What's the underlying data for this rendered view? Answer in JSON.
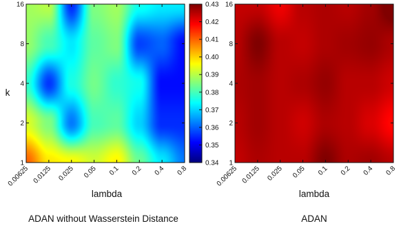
{
  "chart_data": [
    {
      "type": "heatmap",
      "title": "ADAN without Wasserstein Distance",
      "xlabel": "lambda",
      "ylabel": "k",
      "x": [
        0.00625,
        0.0125,
        0.025,
        0.05,
        0.1,
        0.2,
        0.4,
        0.8
      ],
      "xtick_labels": [
        "0.00625",
        "0.0125",
        "0.025",
        "0.05",
        "0.1",
        "0.2",
        "0.4",
        "0.8"
      ],
      "y": [
        1,
        2,
        4,
        8,
        16
      ],
      "ytick_labels": [
        "1",
        "2",
        "4",
        "8",
        "16"
      ],
      "z": [
        [
          0.41,
          0.398,
          0.396,
          0.392,
          0.397,
          0.383,
          0.372,
          0.362
        ],
        [
          0.393,
          0.385,
          0.362,
          0.38,
          0.382,
          0.37,
          0.355,
          0.355
        ],
        [
          0.378,
          0.356,
          0.376,
          0.384,
          0.378,
          0.375,
          0.352,
          0.352
        ],
        [
          0.387,
          0.38,
          0.372,
          0.382,
          0.385,
          0.357,
          0.36,
          0.352
        ],
        [
          0.388,
          0.39,
          0.355,
          0.385,
          0.388,
          0.375,
          0.372,
          0.372
        ]
      ],
      "zlim": [
        0.34,
        0.43
      ],
      "colormap": "jet",
      "colorbar": true,
      "colorbar_ticks": [
        "0.34",
        "0.35",
        "0.36",
        "0.37",
        "0.38",
        "0.39",
        "0.40",
        "0.41",
        "0.42",
        "0.43"
      ],
      "grid": false,
      "scale": "log"
    },
    {
      "type": "heatmap",
      "title": "ADAN",
      "xlabel": "lambda",
      "ylabel": "",
      "x": [
        0.00625,
        0.0125,
        0.025,
        0.05,
        0.1,
        0.2,
        0.4,
        0.8
      ],
      "xtick_labels": [
        "0.00625",
        "0.0125",
        "0.025",
        "0.05",
        "0.1",
        "0.2",
        "0.4",
        "0.8"
      ],
      "y": [
        1,
        2,
        4,
        8,
        16
      ],
      "ytick_labels": [
        "1",
        "2",
        "4",
        "8",
        "16"
      ],
      "z": [
        [
          0.424,
          0.426,
          0.425,
          0.425,
          0.43,
          0.426,
          0.427,
          0.425
        ],
        [
          0.425,
          0.427,
          0.425,
          0.423,
          0.426,
          0.425,
          0.422,
          0.418
        ],
        [
          0.426,
          0.427,
          0.425,
          0.426,
          0.428,
          0.425,
          0.425,
          0.423
        ],
        [
          0.425,
          0.43,
          0.425,
          0.424,
          0.426,
          0.427,
          0.428,
          0.426
        ],
        [
          0.424,
          0.424,
          0.42,
          0.425,
          0.426,
          0.425,
          0.427,
          0.432
        ]
      ],
      "zlim": [
        0.34,
        0.43
      ],
      "colormap": "jet",
      "colorbar": false,
      "grid": false,
      "scale": "log"
    }
  ]
}
